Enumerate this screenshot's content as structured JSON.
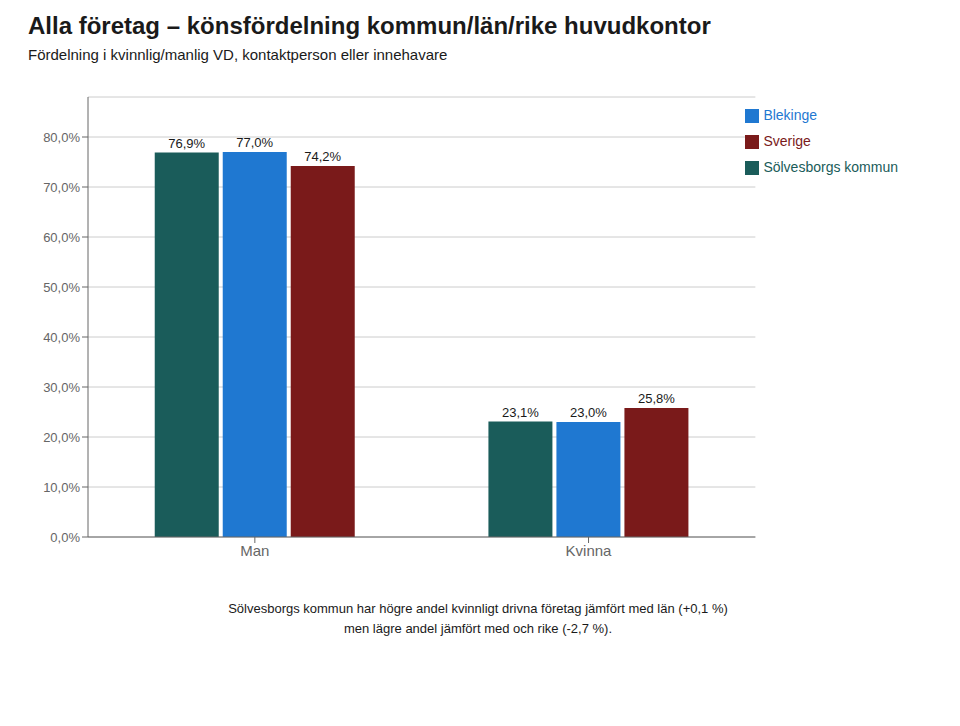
{
  "chart_data": {
    "type": "bar",
    "title": "Alla företag – könsfördelning kommun/län/rike huvudkontor",
    "subtitle": "Fördelning i kvinnlig/manlig VD, kontaktperson eller innehavare",
    "categories": [
      "Man",
      "Kvinna"
    ],
    "series": [
      {
        "name": "Sölvesborgs kommun",
        "color": "#1a5c5a",
        "values": [
          76.9,
          23.1
        ],
        "value_labels": [
          "76,9%",
          "23,1%"
        ]
      },
      {
        "name": "Blekinge",
        "color": "#1f78d1",
        "values": [
          77.0,
          23.0
        ],
        "value_labels": [
          "77,0%",
          "23,0%"
        ]
      },
      {
        "name": "Sverige",
        "color": "#7a1a1a",
        "values": [
          74.2,
          25.8
        ],
        "value_labels": [
          "74,2%",
          "25,8%"
        ]
      }
    ],
    "ylim": [
      0,
      88
    ],
    "yticks": [
      {
        "value": 0,
        "label": "0,0%"
      },
      {
        "value": 10,
        "label": "10,0%"
      },
      {
        "value": 20,
        "label": "20,0%"
      },
      {
        "value": 30,
        "label": "30,0%"
      },
      {
        "value": 40,
        "label": "40,0%"
      },
      {
        "value": 50,
        "label": "50,0%"
      },
      {
        "value": 60,
        "label": "60,0%"
      },
      {
        "value": 70,
        "label": "70,0%"
      },
      {
        "value": 80,
        "label": "80,0%"
      }
    ],
    "grid": true,
    "legend": "upper right",
    "data_labels": true,
    "annotations": [
      "Sölvesborgs kommun har högre andel kvinnligt drivna företag jämfört med län (+0,1 %)",
      "men lägre andel jämfört med och rike (-2,7 %)."
    ]
  }
}
